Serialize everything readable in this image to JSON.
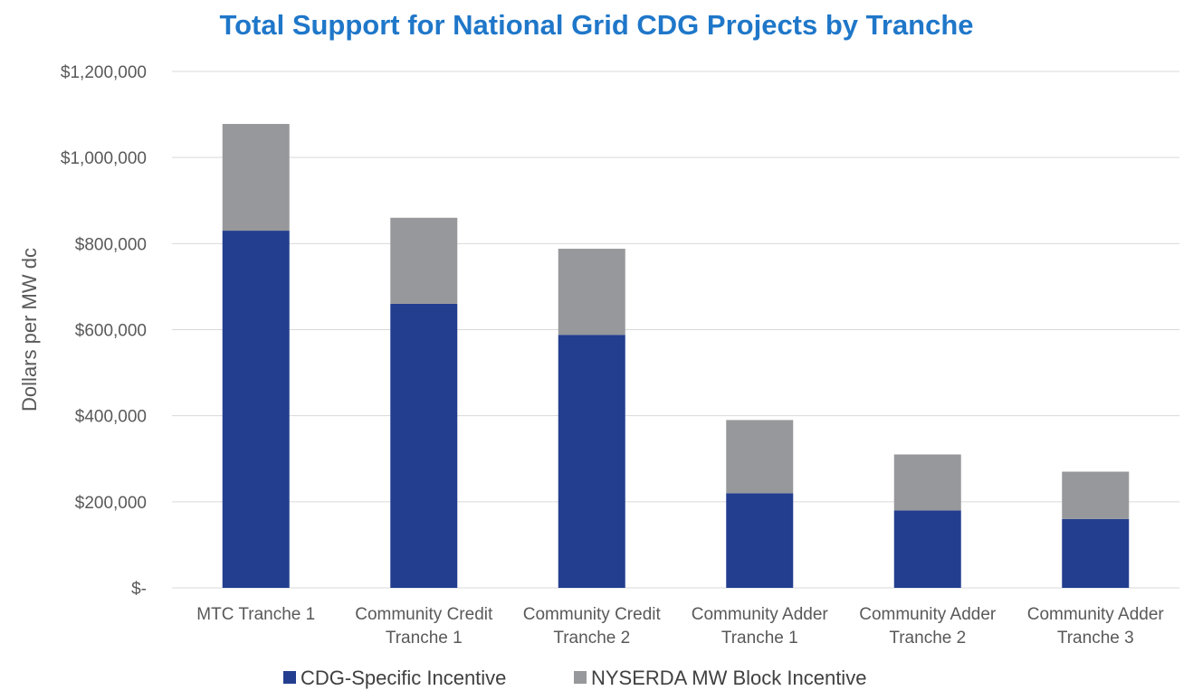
{
  "chart_data": {
    "type": "bar",
    "stacked": true,
    "title": "Total Support for National Grid CDG Projects by Tranche",
    "ylabel": "Dollars per MW dc",
    "xlabel": "",
    "ylim": [
      0,
      1200000
    ],
    "yticks": [
      0,
      200000,
      400000,
      600000,
      800000,
      1000000,
      1200000
    ],
    "ytick_labels": [
      "$-",
      "$200,000",
      "$400,000",
      "$600,000",
      "$800,000",
      "$1,000,000",
      "$1,200,000"
    ],
    "grid": true,
    "legend_position": "bottom",
    "categories": [
      [
        "MTC Tranche 1"
      ],
      [
        "Community Credit",
        "Tranche 1"
      ],
      [
        "Community Credit",
        "Tranche 2"
      ],
      [
        "Community Adder",
        "Tranche 1"
      ],
      [
        "Community Adder",
        "Tranche 2"
      ],
      [
        "Community Adder",
        "Tranche 3"
      ]
    ],
    "series": [
      {
        "name": "CDG-Specific Incentive",
        "color": "#233e8f",
        "values": [
          830000,
          660000,
          588000,
          220000,
          180000,
          160000
        ]
      },
      {
        "name": "NYSERDA MW Block Incentive",
        "color": "#97989b",
        "values": [
          248000,
          200000,
          200000,
          170000,
          130000,
          110000
        ]
      }
    ]
  }
}
